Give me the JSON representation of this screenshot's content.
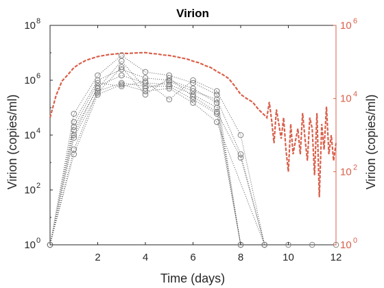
{
  "chart_data": {
    "type": "line",
    "title": "Virion",
    "xlabel": "Time (days)",
    "ylabel_left": "Virion (copies/ml)",
    "ylabel_right": "Virion (copies/ml)",
    "x_ticks": [
      "2",
      "4",
      "6",
      "8",
      "10",
      "12"
    ],
    "left_ticks": [
      {
        "base": "10",
        "exp": "0"
      },
      {
        "base": "10",
        "exp": "2"
      },
      {
        "base": "10",
        "exp": "4"
      },
      {
        "base": "10",
        "exp": "6"
      },
      {
        "base": "10",
        "exp": "8"
      }
    ],
    "right_ticks": [
      {
        "base": "10",
        "exp": "0"
      },
      {
        "base": "10",
        "exp": "2"
      },
      {
        "base": "10",
        "exp": "4"
      },
      {
        "base": "10",
        "exp": "6"
      }
    ],
    "xlim": [
      0,
      12
    ],
    "ylim_left": [
      1,
      100000000
    ],
    "ylim_right": [
      1,
      1000000
    ],
    "yscale": "log",
    "grid": false,
    "colors": {
      "observed": "#808080",
      "model": "#d95f4a",
      "axis": "#262626"
    },
    "series": [
      {
        "x": [
          0,
          1,
          2,
          3,
          4,
          5,
          6,
          7,
          8
        ],
        "y": [
          1,
          60000,
          1500000,
          8000000,
          2000000,
          1500000,
          800000,
          300000,
          1
        ]
      },
      {
        "x": [
          0,
          1,
          2,
          3,
          4,
          5,
          6,
          7,
          8
        ],
        "y": [
          1,
          30000,
          1000000,
          2500000,
          1200000,
          1000000,
          500000,
          150000,
          1
        ]
      },
      {
        "x": [
          0,
          1,
          2,
          3,
          4,
          5,
          6,
          7,
          8
        ],
        "y": [
          1,
          10000,
          600000,
          1500000,
          800000,
          700000,
          300000,
          100000,
          1
        ]
      },
      {
        "x": [
          0,
          1,
          2,
          3,
          4,
          5,
          6,
          7,
          8
        ],
        "y": [
          1,
          3000,
          400000,
          800000,
          600000,
          600000,
          200000,
          60000,
          1
        ]
      },
      {
        "x": [
          0,
          1,
          2,
          3,
          4,
          5,
          6,
          7,
          9
        ],
        "y": [
          1,
          2000,
          300000,
          700000,
          400000,
          500000,
          150000,
          30000,
          1
        ]
      },
      {
        "x": [
          0,
          1,
          2,
          3,
          4,
          5,
          6,
          7,
          8,
          9
        ],
        "y": [
          1,
          20000,
          800000,
          600000,
          900000,
          200000,
          1000000,
          400000,
          10000,
          1
        ]
      },
      {
        "x": [
          0,
          1,
          2,
          3,
          4,
          5,
          6,
          7,
          8,
          9
        ],
        "y": [
          1,
          15000,
          500000,
          5000000,
          500000,
          900000,
          400000,
          200000,
          2000,
          1
        ]
      },
      {
        "x": [
          0,
          1,
          2,
          3,
          4,
          5,
          6,
          7,
          8,
          9
        ],
        "y": [
          1,
          8000,
          350000,
          3000000,
          300000,
          1200000,
          250000,
          70000,
          1500,
          1
        ]
      }
    ],
    "extra_points": [
      {
        "x": 10,
        "y": 1
      },
      {
        "x": 11,
        "y": 1
      },
      {
        "x": 12,
        "y": 1
      }
    ],
    "model_series": {
      "name": "",
      "axis": "right",
      "x": [
        0,
        0.25,
        0.5,
        0.75,
        1,
        1.25,
        1.5,
        1.75,
        2,
        2.25,
        2.5,
        2.75,
        3,
        3.25,
        3.5,
        3.75,
        4,
        4.25,
        4.5,
        4.75,
        5,
        5.25,
        5.5,
        5.75,
        6,
        6.25,
        6.5,
        6.75,
        7,
        7.25,
        7.5,
        7.75,
        8,
        8.25,
        8.5,
        8.75,
        9,
        9.1,
        9.2,
        9.3,
        9.4,
        9.5,
        9.6,
        9.7,
        9.8,
        9.9,
        10,
        10.1,
        10.2,
        10.3,
        10.4,
        10.5,
        10.6,
        10.7,
        10.8,
        10.9,
        11,
        11.1,
        11.2,
        11.3,
        11.4,
        11.5,
        11.6,
        11.7,
        11.8,
        11.9,
        12
      ],
      "y": [
        3000,
        12000,
        30000,
        45000,
        70000,
        90000,
        110000,
        125000,
        140000,
        150000,
        160000,
        165000,
        175000,
        170000,
        175000,
        178000,
        180000,
        170000,
        165000,
        155000,
        150000,
        140000,
        130000,
        120000,
        105000,
        95000,
        80000,
        70000,
        55000,
        45000,
        35000,
        22000,
        13000,
        10000,
        8000,
        5000,
        3500,
        3000,
        8000,
        2500,
        600,
        5000,
        2000,
        800,
        3000,
        400,
        100,
        2000,
        300,
        700,
        1500,
        300,
        4000,
        800,
        200,
        3000,
        1500,
        80,
        4000,
        20,
        2000,
        400,
        6000,
        300,
        1000,
        200,
        600
      ]
    }
  }
}
